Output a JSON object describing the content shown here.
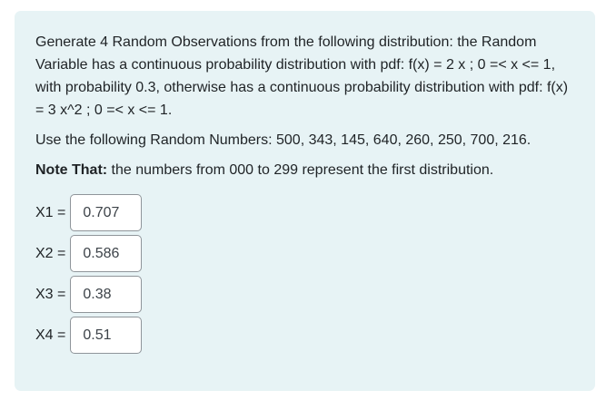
{
  "question": {
    "text_main": "Generate 4 Random Observations from the following distribution: the Random Variable has a continuous probability distribution with pdf: f(x) = 2 x ; 0 =< x <= 1, with probability 0.3, otherwise has a continuous probability distribution with pdf: f(x) = 3 x^2 ; 0 =< x <= 1.",
    "text_random": "Use the following Random Numbers: 500, 343, 145, 640, 260, 250, 700, 216.",
    "note_label": "Note That:",
    "note_text": " the numbers from 000 to 299 represent the first distribution."
  },
  "answers": [
    {
      "label": "X1 =",
      "value": "0.707"
    },
    {
      "label": "X2 =",
      "value": "0.586"
    },
    {
      "label": "X3 =",
      "value": "0.38"
    },
    {
      "label": "X4 =",
      "value": "0.51"
    }
  ],
  "colors": {
    "card_background": "#e7f3f5",
    "input_border": "#8f959a"
  }
}
